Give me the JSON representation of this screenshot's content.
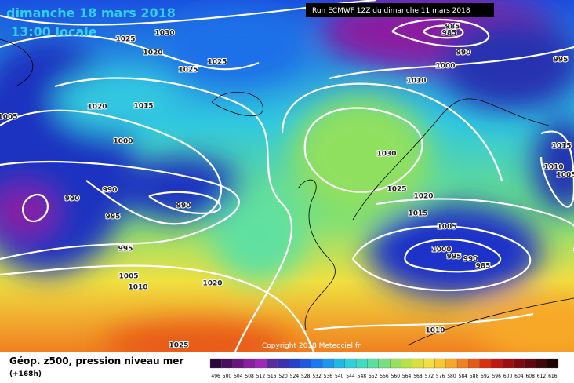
{
  "header": {
    "date": "dimanche 18 mars 2018",
    "time": "13:00 locale",
    "run": "Run ECMWF 12Z du dimanche 11 mars 2018"
  },
  "isobars": {
    "labels": [
      "1025",
      "1030",
      "1020",
      "1025",
      "1025",
      "1020",
      "1015",
      "1005",
      "1000",
      "990",
      "990",
      "990",
      "995",
      "995",
      "1005",
      "1010",
      "1020",
      "1025",
      "985",
      "985",
      "990",
      "1000",
      "995",
      "1010",
      "1030",
      "1025",
      "1020",
      "1015",
      "1005",
      "1000",
      "995",
      "990",
      "985",
      "1015",
      "1010",
      "1005",
      "1010"
    ]
  },
  "copyright": "Copyright 2018 Meteociel.fr",
  "footer": {
    "title": "Géop. z500, pression niveau mer",
    "subtitle": "(+168h)"
  },
  "legend": {
    "ticks": [
      496,
      500,
      504,
      508,
      512,
      516,
      520,
      524,
      528,
      532,
      536,
      540,
      544,
      548,
      552,
      556,
      560,
      564,
      568,
      572,
      576,
      580,
      584,
      588,
      592,
      596,
      600,
      604,
      608,
      612,
      616
    ],
    "colors": [
      "#2a0a3a",
      "#4a0e5e",
      "#6a1480",
      "#8a1ea0",
      "#a028b8",
      "#5a2aa0",
      "#3a30b0",
      "#2840c8",
      "#1e58e0",
      "#1a78f0",
      "#1898f0",
      "#20b8e8",
      "#30d0d8",
      "#40dcc0",
      "#58e0a0",
      "#78e080",
      "#98e060",
      "#b8e048",
      "#d8e040",
      "#f0e040",
      "#f8c830",
      "#f8a828",
      "#f08020",
      "#e85818",
      "#d83010",
      "#c01810",
      "#a00c10",
      "#800810",
      "#600810",
      "#400808",
      "#200404"
    ]
  }
}
